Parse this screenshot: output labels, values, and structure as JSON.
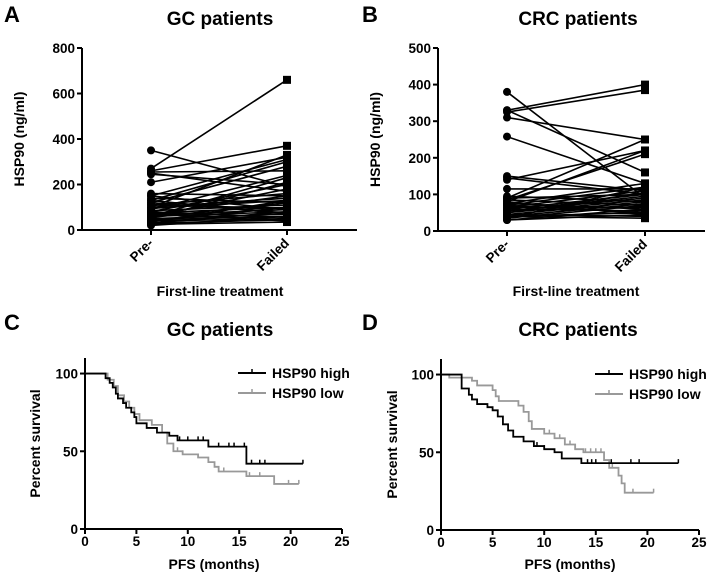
{
  "chart_data": [
    {
      "panel": "A",
      "type": "line",
      "title": "GC patients",
      "xlabel": "First-line treatment",
      "ylabel": "HSP90 (ng/ml)",
      "categories": [
        "Pre-",
        "Failed"
      ],
      "ylim": [
        0,
        800
      ],
      "yticks": [
        0,
        200,
        400,
        600,
        800
      ],
      "pairs": [
        [
          270,
          660
        ],
        [
          350,
          190
        ],
        [
          260,
          370
        ],
        [
          255,
          260
        ],
        [
          245,
          200
        ],
        [
          210,
          320
        ],
        [
          250,
          170
        ],
        [
          150,
          310
        ],
        [
          130,
          300
        ],
        [
          100,
          330
        ],
        [
          160,
          150
        ],
        [
          140,
          120
        ],
        [
          120,
          280
        ],
        [
          90,
          240
        ],
        [
          80,
          200
        ],
        [
          60,
          180
        ],
        [
          150,
          90
        ],
        [
          130,
          70
        ],
        [
          110,
          160
        ],
        [
          100,
          140
        ],
        [
          95,
          130
        ],
        [
          85,
          110
        ],
        [
          75,
          100
        ],
        [
          70,
          150
        ],
        [
          65,
          90
        ],
        [
          60,
          80
        ],
        [
          55,
          120
        ],
        [
          50,
          70
        ],
        [
          45,
          60
        ],
        [
          40,
          100
        ],
        [
          40,
          50
        ],
        [
          35,
          130
        ],
        [
          30,
          45
        ],
        [
          30,
          80
        ],
        [
          25,
          35
        ],
        [
          20,
          60
        ],
        [
          70,
          40
        ],
        [
          80,
          55
        ],
        [
          110,
          95
        ],
        [
          120,
          75
        ],
        [
          50,
          210
        ],
        [
          60,
          230
        ]
      ]
    },
    {
      "panel": "B",
      "type": "line",
      "title": "CRC patients",
      "xlabel": "First-line treatment",
      "ylabel": "HSP90 (ng/ml)",
      "categories": [
        "Pre-",
        "Failed"
      ],
      "ylim": [
        0,
        500
      ],
      "yticks": [
        0,
        100,
        200,
        300,
        400,
        500
      ],
      "pairs": [
        [
          380,
          90
        ],
        [
          330,
          400
        ],
        [
          325,
          385
        ],
        [
          330,
          160
        ],
        [
          310,
          250
        ],
        [
          258,
          130
        ],
        [
          145,
          100
        ],
        [
          140,
          220
        ],
        [
          150,
          110
        ],
        [
          115,
          115
        ],
        [
          90,
          250
        ],
        [
          85,
          210
        ],
        [
          80,
          220
        ],
        [
          75,
          130
        ],
        [
          70,
          120
        ],
        [
          65,
          110
        ],
        [
          60,
          100
        ],
        [
          55,
          90
        ],
        [
          50,
          85
        ],
        [
          45,
          80
        ],
        [
          40,
          75
        ],
        [
          35,
          70
        ],
        [
          30,
          60
        ],
        [
          60,
          55
        ],
        [
          70,
          50
        ],
        [
          80,
          45
        ],
        [
          45,
          40
        ],
        [
          40,
          35
        ],
        [
          35,
          120
        ],
        [
          50,
          105
        ],
        [
          55,
          95
        ],
        [
          65,
          65
        ],
        [
          75,
          60
        ],
        [
          85,
          70
        ],
        [
          90,
          100
        ],
        [
          95,
          80
        ],
        [
          40,
          50
        ],
        [
          30,
          45
        ]
      ]
    },
    {
      "panel": "C",
      "type": "line",
      "title": "GC patients",
      "xlabel": "PFS (months)",
      "ylabel": "Percent survival",
      "xlim": [
        0,
        25
      ],
      "ylim": [
        0,
        110
      ],
      "xticks": [
        0,
        5,
        10,
        15,
        20,
        25
      ],
      "yticks": [
        0,
        50,
        100
      ],
      "legend_position": "top-right",
      "series": [
        {
          "name": "HSP90 high",
          "color": "#000000",
          "steps": [
            [
              0,
              100
            ],
            [
              1.7,
              100
            ],
            [
              2,
              97
            ],
            [
              2.4,
              94
            ],
            [
              2.7,
              91
            ],
            [
              3,
              87
            ],
            [
              3.2,
              84
            ],
            [
              3.7,
              81
            ],
            [
              4,
              78
            ],
            [
              4.5,
              75
            ],
            [
              4.8,
              72
            ],
            [
              5,
              68
            ],
            [
              6,
              65
            ],
            [
              7,
              62
            ],
            [
              8.2,
              60
            ],
            [
              9,
              57
            ],
            [
              12,
              53
            ],
            [
              15.7,
              42
            ],
            [
              21.2,
              42
            ]
          ],
          "censored": [
            9.2,
            10,
            11,
            11.5,
            12,
            13,
            14,
            14.5,
            15.5,
            16.2,
            17,
            17.5,
            21.2
          ]
        },
        {
          "name": "HSP90 low",
          "color": "#999999",
          "steps": [
            [
              0,
              100
            ],
            [
              1.7,
              100
            ],
            [
              2.2,
              96
            ],
            [
              2.8,
              92
            ],
            [
              3.2,
              86
            ],
            [
              3.8,
              82
            ],
            [
              4.3,
              78
            ],
            [
              4.8,
              74
            ],
            [
              5.3,
              70
            ],
            [
              6.5,
              67
            ],
            [
              7.5,
              62
            ],
            [
              8,
              55
            ],
            [
              8.6,
              50
            ],
            [
              9.5,
              48
            ],
            [
              11,
              46
            ],
            [
              12,
              43
            ],
            [
              12.6,
              40
            ],
            [
              13,
              37
            ],
            [
              15.7,
              34
            ],
            [
              18.4,
              29
            ],
            [
              20.8,
              29
            ]
          ],
          "censored": [
            9,
            9.5,
            13.5,
            16,
            17,
            19.8,
            20.8
          ]
        }
      ]
    },
    {
      "panel": "D",
      "type": "line",
      "title": "CRC patients",
      "xlabel": "PFS (months)",
      "ylabel": "Percent survival",
      "xlim": [
        0,
        25
      ],
      "ylim": [
        0,
        110
      ],
      "xticks": [
        0,
        5,
        10,
        15,
        20,
        25
      ],
      "yticks": [
        0,
        50,
        100
      ],
      "legend_position": "top-right",
      "series": [
        {
          "name": "HSP90 high",
          "color": "#000000",
          "steps": [
            [
              0,
              100
            ],
            [
              1.7,
              100
            ],
            [
              2,
              91
            ],
            [
              2.7,
              87
            ],
            [
              3,
              84
            ],
            [
              3.5,
              81
            ],
            [
              4.5,
              79
            ],
            [
              5,
              77
            ],
            [
              5.5,
              73
            ],
            [
              6,
              68
            ],
            [
              6.5,
              64
            ],
            [
              7,
              60
            ],
            [
              8,
              57
            ],
            [
              9,
              54
            ],
            [
              10,
              52
            ],
            [
              11,
              50
            ],
            [
              11.7,
              46
            ],
            [
              13.6,
              43
            ],
            [
              23,
              43
            ]
          ],
          "censored": [
            9.3,
            10,
            14.2,
            14.6,
            15,
            16.5,
            18.4,
            19.2,
            23
          ]
        },
        {
          "name": "HSP90 low",
          "color": "#999999",
          "steps": [
            [
              0,
              100
            ],
            [
              0.8,
              98
            ],
            [
              2.5,
              98
            ],
            [
              3,
              96
            ],
            [
              3.5,
              93
            ],
            [
              5,
              90
            ],
            [
              5.3,
              86
            ],
            [
              5.6,
              83
            ],
            [
              7.5,
              80
            ],
            [
              8,
              76
            ],
            [
              8.5,
              70
            ],
            [
              8.8,
              65
            ],
            [
              10,
              62
            ],
            [
              11,
              59
            ],
            [
              12,
              55
            ],
            [
              13,
              52
            ],
            [
              13.8,
              50
            ],
            [
              15.8,
              45
            ],
            [
              16.3,
              40
            ],
            [
              17.2,
              35
            ],
            [
              17.5,
              30
            ],
            [
              17.8,
              24
            ],
            [
              20.6,
              24
            ]
          ],
          "censored": [
            10.5,
            11.5,
            12.5,
            13,
            14,
            14.5,
            15,
            15.5,
            16.6,
            18.6,
            20.6
          ]
        }
      ]
    }
  ]
}
